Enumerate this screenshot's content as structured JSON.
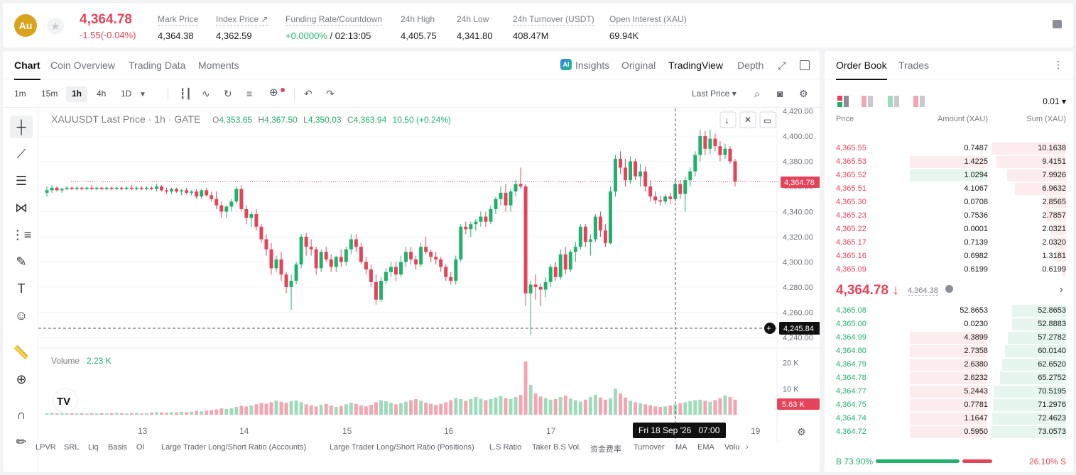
{
  "header": {
    "coin_badge": "Au",
    "last_price": "4,364.78",
    "change": "-1.55(-0.04%)",
    "stats": [
      {
        "label": "Mark Price",
        "value": "4,364.38"
      },
      {
        "label": "Index Price ↗",
        "value": "4,362.59"
      },
      {
        "label": "Funding Rate/Countdown",
        "value_green": "+0.0000%",
        "value_rest": " / 02:13:05"
      },
      {
        "label": "24h High",
        "value": "4,405.75"
      },
      {
        "label": "24h Low",
        "value": "4,341.80"
      },
      {
        "label": "24h Turnover (USDT)",
        "value": "408.47M"
      },
      {
        "label": "Open Interest (XAU)",
        "value": "69.94K"
      }
    ]
  },
  "chart_tabs": [
    "Chart",
    "Coin Overview",
    "Trading Data",
    "Moments"
  ],
  "chart_modes": {
    "insights": "Insights",
    "original": "Original",
    "tradingview": "TradingView",
    "depth": "Depth"
  },
  "timeframes": [
    "1m",
    "15m",
    "1h",
    "4h",
    "1D"
  ],
  "active_timeframe": "1h",
  "price_type": "Last Price",
  "legend": {
    "symbol": "XAUUSDT Last Price · 1h · GATE",
    "o_label": "O",
    "o": "4,353.65",
    "h_label": "H",
    "h": "4,367.50",
    "l_label": "L",
    "l": "4,350.03",
    "c_label": "C",
    "c": "4,363.94",
    "chg": "10.50 (+0.24%)",
    "volume_label": "Volume",
    "volume_value": "2.23 K"
  },
  "crosshair": {
    "price": "4,245.84",
    "time": "Fri 18 Sep '26   07:00"
  },
  "current_price_tag": "4,364.78",
  "volume_tag": "5.63 K",
  "indicators": [
    "LPVR",
    "SRL",
    "Liq",
    "Basis",
    "OI",
    "Large Trader Long/Short Ratio (Accounts)",
    "Large Trader Long/Short Ratio (Positions)",
    "L.S Ratio",
    "Taker B.S Vol.",
    "资金费率",
    "Turnover",
    "MA",
    "EMA",
    "Volu"
  ],
  "chart_data": {
    "type": "candlestick",
    "price_axis_ticks": [
      "4,420.00",
      "4,400.00",
      "4,380.00",
      "4,360.00",
      "4,340.00",
      "4,320.00",
      "4,300.00",
      "4,280.00",
      "4,260.00",
      "4,240.00"
    ],
    "ylim": [
      4236,
      4422
    ],
    "volume_axis_ticks": [
      "20 K",
      "10 K"
    ],
    "volume_ylim": [
      0,
      24000
    ],
    "x_tick_labels": [
      "13",
      "14",
      "15",
      "16",
      "17",
      "19"
    ],
    "candles_ohlc": [
      [
        4355,
        4360,
        4352,
        4357
      ],
      [
        4357,
        4361,
        4355,
        4359
      ],
      [
        4359,
        4360,
        4356,
        4357
      ],
      [
        4357,
        4359,
        4355,
        4358
      ],
      [
        4358,
        4360,
        4357,
        4359
      ],
      [
        4359,
        4360,
        4357,
        4358
      ],
      [
        4358,
        4360,
        4357,
        4359
      ],
      [
        4359,
        4360,
        4357,
        4358
      ],
      [
        4358,
        4360,
        4357,
        4359
      ],
      [
        4359,
        4361,
        4357,
        4358
      ],
      [
        4358,
        4360,
        4357,
        4359
      ],
      [
        4359,
        4360,
        4357,
        4358
      ],
      [
        4358,
        4360,
        4357,
        4359
      ],
      [
        4359,
        4360,
        4357,
        4358
      ],
      [
        4358,
        4360,
        4357,
        4359
      ],
      [
        4359,
        4360,
        4357,
        4358
      ],
      [
        4358,
        4360,
        4357,
        4359
      ],
      [
        4359,
        4361,
        4357,
        4358
      ],
      [
        4358,
        4360,
        4357,
        4359
      ],
      [
        4359,
        4360,
        4357,
        4358
      ],
      [
        4358,
        4360,
        4357,
        4359
      ],
      [
        4359,
        4360,
        4357,
        4358
      ],
      [
        4358,
        4362,
        4356,
        4360
      ],
      [
        4360,
        4361,
        4356,
        4357
      ],
      [
        4357,
        4359,
        4354,
        4356
      ],
      [
        4356,
        4359,
        4354,
        4358
      ],
      [
        4358,
        4359,
        4355,
        4356
      ],
      [
        4356,
        4358,
        4353,
        4357
      ],
      [
        4357,
        4359,
        4354,
        4355
      ],
      [
        4355,
        4357,
        4353,
        4356
      ],
      [
        4356,
        4358,
        4350,
        4352
      ],
      [
        4352,
        4358,
        4350,
        4357
      ],
      [
        4357,
        4359,
        4352,
        4353
      ],
      [
        4353,
        4356,
        4348,
        4350
      ],
      [
        4350,
        4356,
        4342,
        4345
      ],
      [
        4345,
        4348,
        4335,
        4340
      ],
      [
        4340,
        4345,
        4335,
        4344
      ],
      [
        4344,
        4350,
        4340,
        4348
      ],
      [
        4348,
        4360,
        4346,
        4358
      ],
      [
        4358,
        4361,
        4340,
        4342
      ],
      [
        4342,
        4345,
        4330,
        4335
      ],
      [
        4335,
        4340,
        4328,
        4338
      ],
      [
        4338,
        4342,
        4325,
        4328
      ],
      [
        4328,
        4330,
        4315,
        4318
      ],
      [
        4318,
        4322,
        4305,
        4310
      ],
      [
        4310,
        4315,
        4290,
        4295
      ],
      [
        4295,
        4305,
        4292,
        4302
      ],
      [
        4302,
        4308,
        4285,
        4290
      ],
      [
        4290,
        4292,
        4275,
        4280
      ],
      [
        4280,
        4290,
        4262,
        4285
      ],
      [
        4285,
        4300,
        4282,
        4298
      ],
      [
        4298,
        4322,
        4295,
        4320
      ],
      [
        4320,
        4323,
        4305,
        4312
      ],
      [
        4312,
        4318,
        4305,
        4310
      ],
      [
        4310,
        4312,
        4290,
        4295
      ],
      [
        4295,
        4310,
        4292,
        4308
      ],
      [
        4308,
        4312,
        4300,
        4302
      ],
      [
        4302,
        4306,
        4292,
        4296
      ],
      [
        4296,
        4305,
        4292,
        4304
      ],
      [
        4304,
        4310,
        4296,
        4300
      ],
      [
        4300,
        4312,
        4297,
        4310
      ],
      [
        4310,
        4322,
        4306,
        4318
      ],
      [
        4318,
        4322,
        4308,
        4312
      ],
      [
        4312,
        4315,
        4298,
        4300
      ],
      [
        4300,
        4304,
        4290,
        4294
      ],
      [
        4294,
        4298,
        4280,
        4284
      ],
      [
        4284,
        4290,
        4266,
        4270
      ],
      [
        4270,
        4288,
        4268,
        4285
      ],
      [
        4285,
        4295,
        4282,
        4292
      ],
      [
        4292,
        4300,
        4288,
        4296
      ],
      [
        4296,
        4300,
        4285,
        4290
      ],
      [
        4290,
        4305,
        4288,
        4300
      ],
      [
        4300,
        4312,
        4296,
        4308
      ],
      [
        4308,
        4312,
        4298,
        4302
      ],
      [
        4302,
        4305,
        4294,
        4298
      ],
      [
        4298,
        4315,
        4296,
        4312
      ],
      [
        4312,
        4320,
        4306,
        4308
      ],
      [
        4308,
        4310,
        4300,
        4304
      ],
      [
        4304,
        4308,
        4298,
        4302
      ],
      [
        4302,
        4304,
        4292,
        4296
      ],
      [
        4296,
        4298,
        4285,
        4288
      ],
      [
        4288,
        4292,
        4282,
        4285
      ],
      [
        4285,
        4305,
        4282,
        4302
      ],
      [
        4302,
        4330,
        4300,
        4328
      ],
      [
        4328,
        4332,
        4322,
        4326
      ],
      [
        4326,
        4332,
        4320,
        4330
      ],
      [
        4330,
        4334,
        4325,
        4332
      ],
      [
        4332,
        4340,
        4328,
        4336
      ],
      [
        4336,
        4340,
        4328,
        4332
      ],
      [
        4332,
        4345,
        4330,
        4342
      ],
      [
        4342,
        4352,
        4338,
        4350
      ],
      [
        4350,
        4360,
        4345,
        4355
      ],
      [
        4355,
        4362,
        4340,
        4345
      ],
      [
        4345,
        4358,
        4340,
        4356
      ],
      [
        4356,
        4365,
        4352,
        4362
      ],
      [
        4362,
        4375,
        4358,
        4360
      ],
      [
        4360,
        4362,
        4265,
        4275
      ],
      [
        4275,
        4285,
        4242,
        4282
      ],
      [
        4282,
        4290,
        4270,
        4280
      ],
      [
        4280,
        4283,
        4265,
        4278
      ],
      [
        4278,
        4288,
        4272,
        4284
      ],
      [
        4284,
        4298,
        4280,
        4296
      ],
      [
        4296,
        4300,
        4285,
        4288
      ],
      [
        4288,
        4310,
        4286,
        4306
      ],
      [
        4306,
        4312,
        4290,
        4294
      ],
      [
        4294,
        4310,
        4292,
        4308
      ],
      [
        4308,
        4316,
        4300,
        4312
      ],
      [
        4312,
        4330,
        4310,
        4328
      ],
      [
        4328,
        4330,
        4312,
        4316
      ],
      [
        4316,
        4322,
        4305,
        4318
      ],
      [
        4318,
        4338,
        4316,
        4336
      ],
      [
        4336,
        4340,
        4320,
        4325
      ],
      [
        4325,
        4330,
        4312,
        4315
      ],
      [
        4315,
        4360,
        4314,
        4356
      ],
      [
        4356,
        4385,
        4352,
        4382
      ],
      [
        4382,
        4388,
        4370,
        4375
      ],
      [
        4375,
        4382,
        4360,
        4365
      ],
      [
        4365,
        4384,
        4362,
        4380
      ],
      [
        4380,
        4382,
        4365,
        4368
      ],
      [
        4368,
        4378,
        4360,
        4372
      ],
      [
        4372,
        4376,
        4356,
        4360
      ],
      [
        4360,
        4365,
        4348,
        4352
      ],
      [
        4352,
        4356,
        4346,
        4349
      ],
      [
        4349,
        4353,
        4345,
        4348
      ],
      [
        4348,
        4354,
        4346,
        4352
      ],
      [
        4352,
        4355,
        4346,
        4350
      ],
      [
        4350,
        4366,
        4348,
        4362
      ],
      [
        4362,
        4365,
        4350,
        4354
      ],
      [
        4354,
        4368,
        4340,
        4365
      ],
      [
        4365,
        4375,
        4360,
        4372
      ],
      [
        4372,
        4388,
        4368,
        4385
      ],
      [
        4385,
        4405,
        4380,
        4400
      ],
      [
        4400,
        4404,
        4385,
        4390
      ],
      [
        4390,
        4405,
        4386,
        4398
      ],
      [
        4398,
        4402,
        4388,
        4392
      ],
      [
        4392,
        4396,
        4380,
        4385
      ],
      [
        4385,
        4394,
        4382,
        4390
      ],
      [
        4390,
        4392,
        4378,
        4380
      ],
      [
        4380,
        4382,
        4360,
        4364
      ]
    ],
    "volumes_k": [
      0.6,
      0.7,
      0.5,
      0.6,
      0.5,
      0.6,
      0.5,
      0.6,
      0.5,
      0.6,
      0.5,
      0.6,
      0.5,
      0.6,
      0.7,
      0.6,
      0.5,
      0.6,
      0.7,
      0.5,
      0.6,
      0.8,
      1.0,
      0.9,
      0.8,
      1.0,
      0.9,
      1.1,
      1.0,
      1.2,
      1.5,
      1.3,
      1.6,
      1.8,
      2.0,
      2.4,
      2.2,
      2.5,
      3.0,
      3.5,
      3.2,
      3.6,
      4.0,
      4.5,
      4.2,
      4.8,
      5.5,
      5.0,
      4.6,
      5.2,
      5.5,
      4.8,
      4.0,
      3.6,
      3.2,
      3.8,
      4.2,
      3.5,
      3.0,
      3.4,
      4.0,
      4.6,
      4.2,
      3.6,
      3.2,
      3.8,
      4.8,
      5.6,
      5.2,
      4.6,
      4.0,
      4.4,
      5.0,
      5.6,
      6.0,
      5.4,
      4.6,
      4.2,
      3.8,
      4.2,
      4.8,
      5.6,
      6.4,
      6.0,
      5.4,
      6.0,
      6.8,
      6.2,
      5.6,
      6.0,
      6.6,
      7.2,
      6.4,
      6.0,
      6.8,
      7.6,
      20.5,
      11.5,
      8.2,
      7.0,
      6.4,
      5.8,
      6.0,
      6.8,
      7.4,
      6.2,
      5.6,
      5.0,
      5.8,
      6.8,
      7.6,
      6.6,
      5.8,
      6.4,
      10.0,
      8.2,
      6.6,
      5.4,
      4.8,
      4.4,
      4.0,
      3.6,
      3.2,
      3.0,
      3.2,
      3.6,
      4.0,
      4.4,
      4.8,
      5.2,
      5.6,
      5.8,
      5.4,
      5.0,
      5.6,
      6.4,
      7.4,
      6.8,
      5.8
    ]
  },
  "orderbook": {
    "tabs": [
      "Order Book",
      "Trades"
    ],
    "precision": "0.01",
    "headers": {
      "price": "Price",
      "amount": "Amount (XAU)",
      "sum": "Sum (XAU)"
    },
    "asks": [
      [
        "4,365.55",
        "0.7487",
        "10.1638"
      ],
      [
        "4,365.53",
        "1.4225",
        "9.4151"
      ],
      [
        "4,365.52",
        "1.0294",
        "7.9926"
      ],
      [
        "4,365.51",
        "4.1067",
        "6.9632"
      ],
      [
        "4,365.30",
        "0.0708",
        "2.8565"
      ],
      [
        "4,365.23",
        "0.7536",
        "2.7857"
      ],
      [
        "4,365.22",
        "0.0001",
        "2.0321"
      ],
      [
        "4,365.17",
        "0.7139",
        "2.0320"
      ],
      [
        "4,365.16",
        "0.6982",
        "1.3181"
      ],
      [
        "4,365.09",
        "0.6199",
        "0.6199"
      ]
    ],
    "ask_sum_frac": [
      1.0,
      0.93,
      0.79,
      0.69,
      0.28,
      0.27,
      0.2,
      0.2,
      0.13,
      0.06
    ],
    "ask_amount_frac": [
      0,
      1.0,
      0.0,
      0,
      0,
      0,
      0,
      0,
      0,
      0
    ],
    "mid_price": "4,364.78 ↓",
    "mid_index": "4,364.38",
    "bids": [
      [
        "4,365.08",
        "52.8653",
        "52.8653"
      ],
      [
        "4,365.00",
        "0.0230",
        "52.8883"
      ],
      [
        "4,364.99",
        "4.3899",
        "57.2782"
      ],
      [
        "4,364.80",
        "2.7358",
        "60.0140"
      ],
      [
        "4,364.79",
        "2.6380",
        "62.6520"
      ],
      [
        "4,364.78",
        "2.6232",
        "65.2752"
      ],
      [
        "4,364.77",
        "5.2443",
        "70.5195"
      ],
      [
        "4,364.75",
        "0.7781",
        "71.2976"
      ],
      [
        "4,364.74",
        "1.1647",
        "72.4623"
      ],
      [
        "4,364.72",
        "0.5950",
        "73.0573"
      ]
    ],
    "bid_sum_frac": [
      0.72,
      0.72,
      0.78,
      0.82,
      0.86,
      0.89,
      0.97,
      0.98,
      0.99,
      1.0
    ],
    "buy_ratio": "B 73.90%",
    "sell_ratio": "26.10% S",
    "buy_frac": 0.739
  }
}
